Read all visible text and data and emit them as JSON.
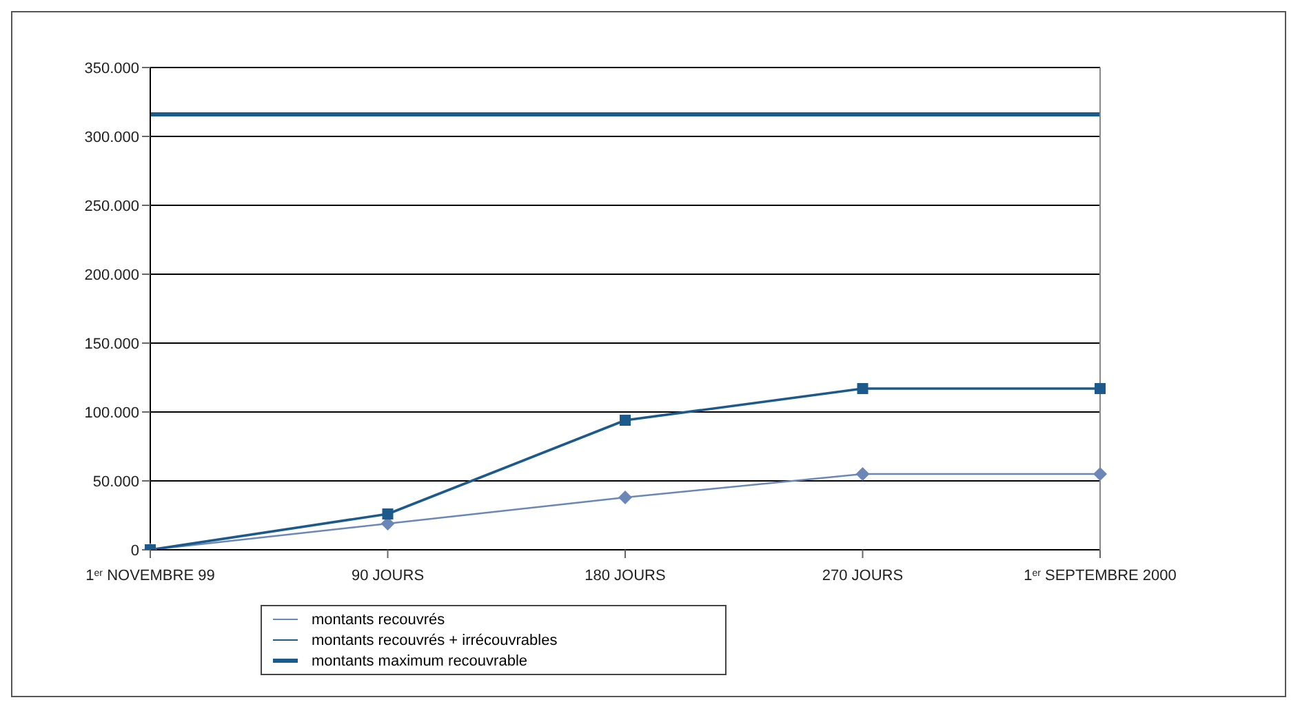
{
  "chart_data": {
    "type": "line",
    "categories": [
      "1$^{er}$ NOVEMBRE 99",
      "90 JOURS",
      "180 JOURS",
      "270 JOURS",
      "1$^{er}$ SEPTEMBRE 2000"
    ],
    "series": [
      {
        "name": "montants recouvrés",
        "color": "#6a87b8",
        "marker": "diamond",
        "values": [
          0,
          19000,
          38000,
          55000,
          55000
        ]
      },
      {
        "name": "montants recouvrés + irrécouvrables",
        "color": "#1c5a8c",
        "marker": "square",
        "values": [
          0,
          26000,
          94000,
          117000,
          117000
        ]
      },
      {
        "name": "montants maximum recouvrable",
        "color": "#1a5b8e",
        "marker": "none",
        "values": [
          316000,
          316000,
          316000,
          316000,
          316000
        ]
      }
    ],
    "ylim": [
      0,
      350000
    ],
    "yticks": [
      {
        "value": 0,
        "label": "0"
      },
      {
        "value": 50000,
        "label": "50.000"
      },
      {
        "value": 100000,
        "label": "100.000"
      },
      {
        "value": 150000,
        "label": "150.000"
      },
      {
        "value": 200000,
        "label": "200.000"
      },
      {
        "value": 250000,
        "label": "250.000"
      },
      {
        "value": 300000,
        "label": "300.000"
      },
      {
        "value": 350000,
        "label": "350.000"
      }
    ],
    "grid": "y",
    "legend": "bottom left"
  }
}
